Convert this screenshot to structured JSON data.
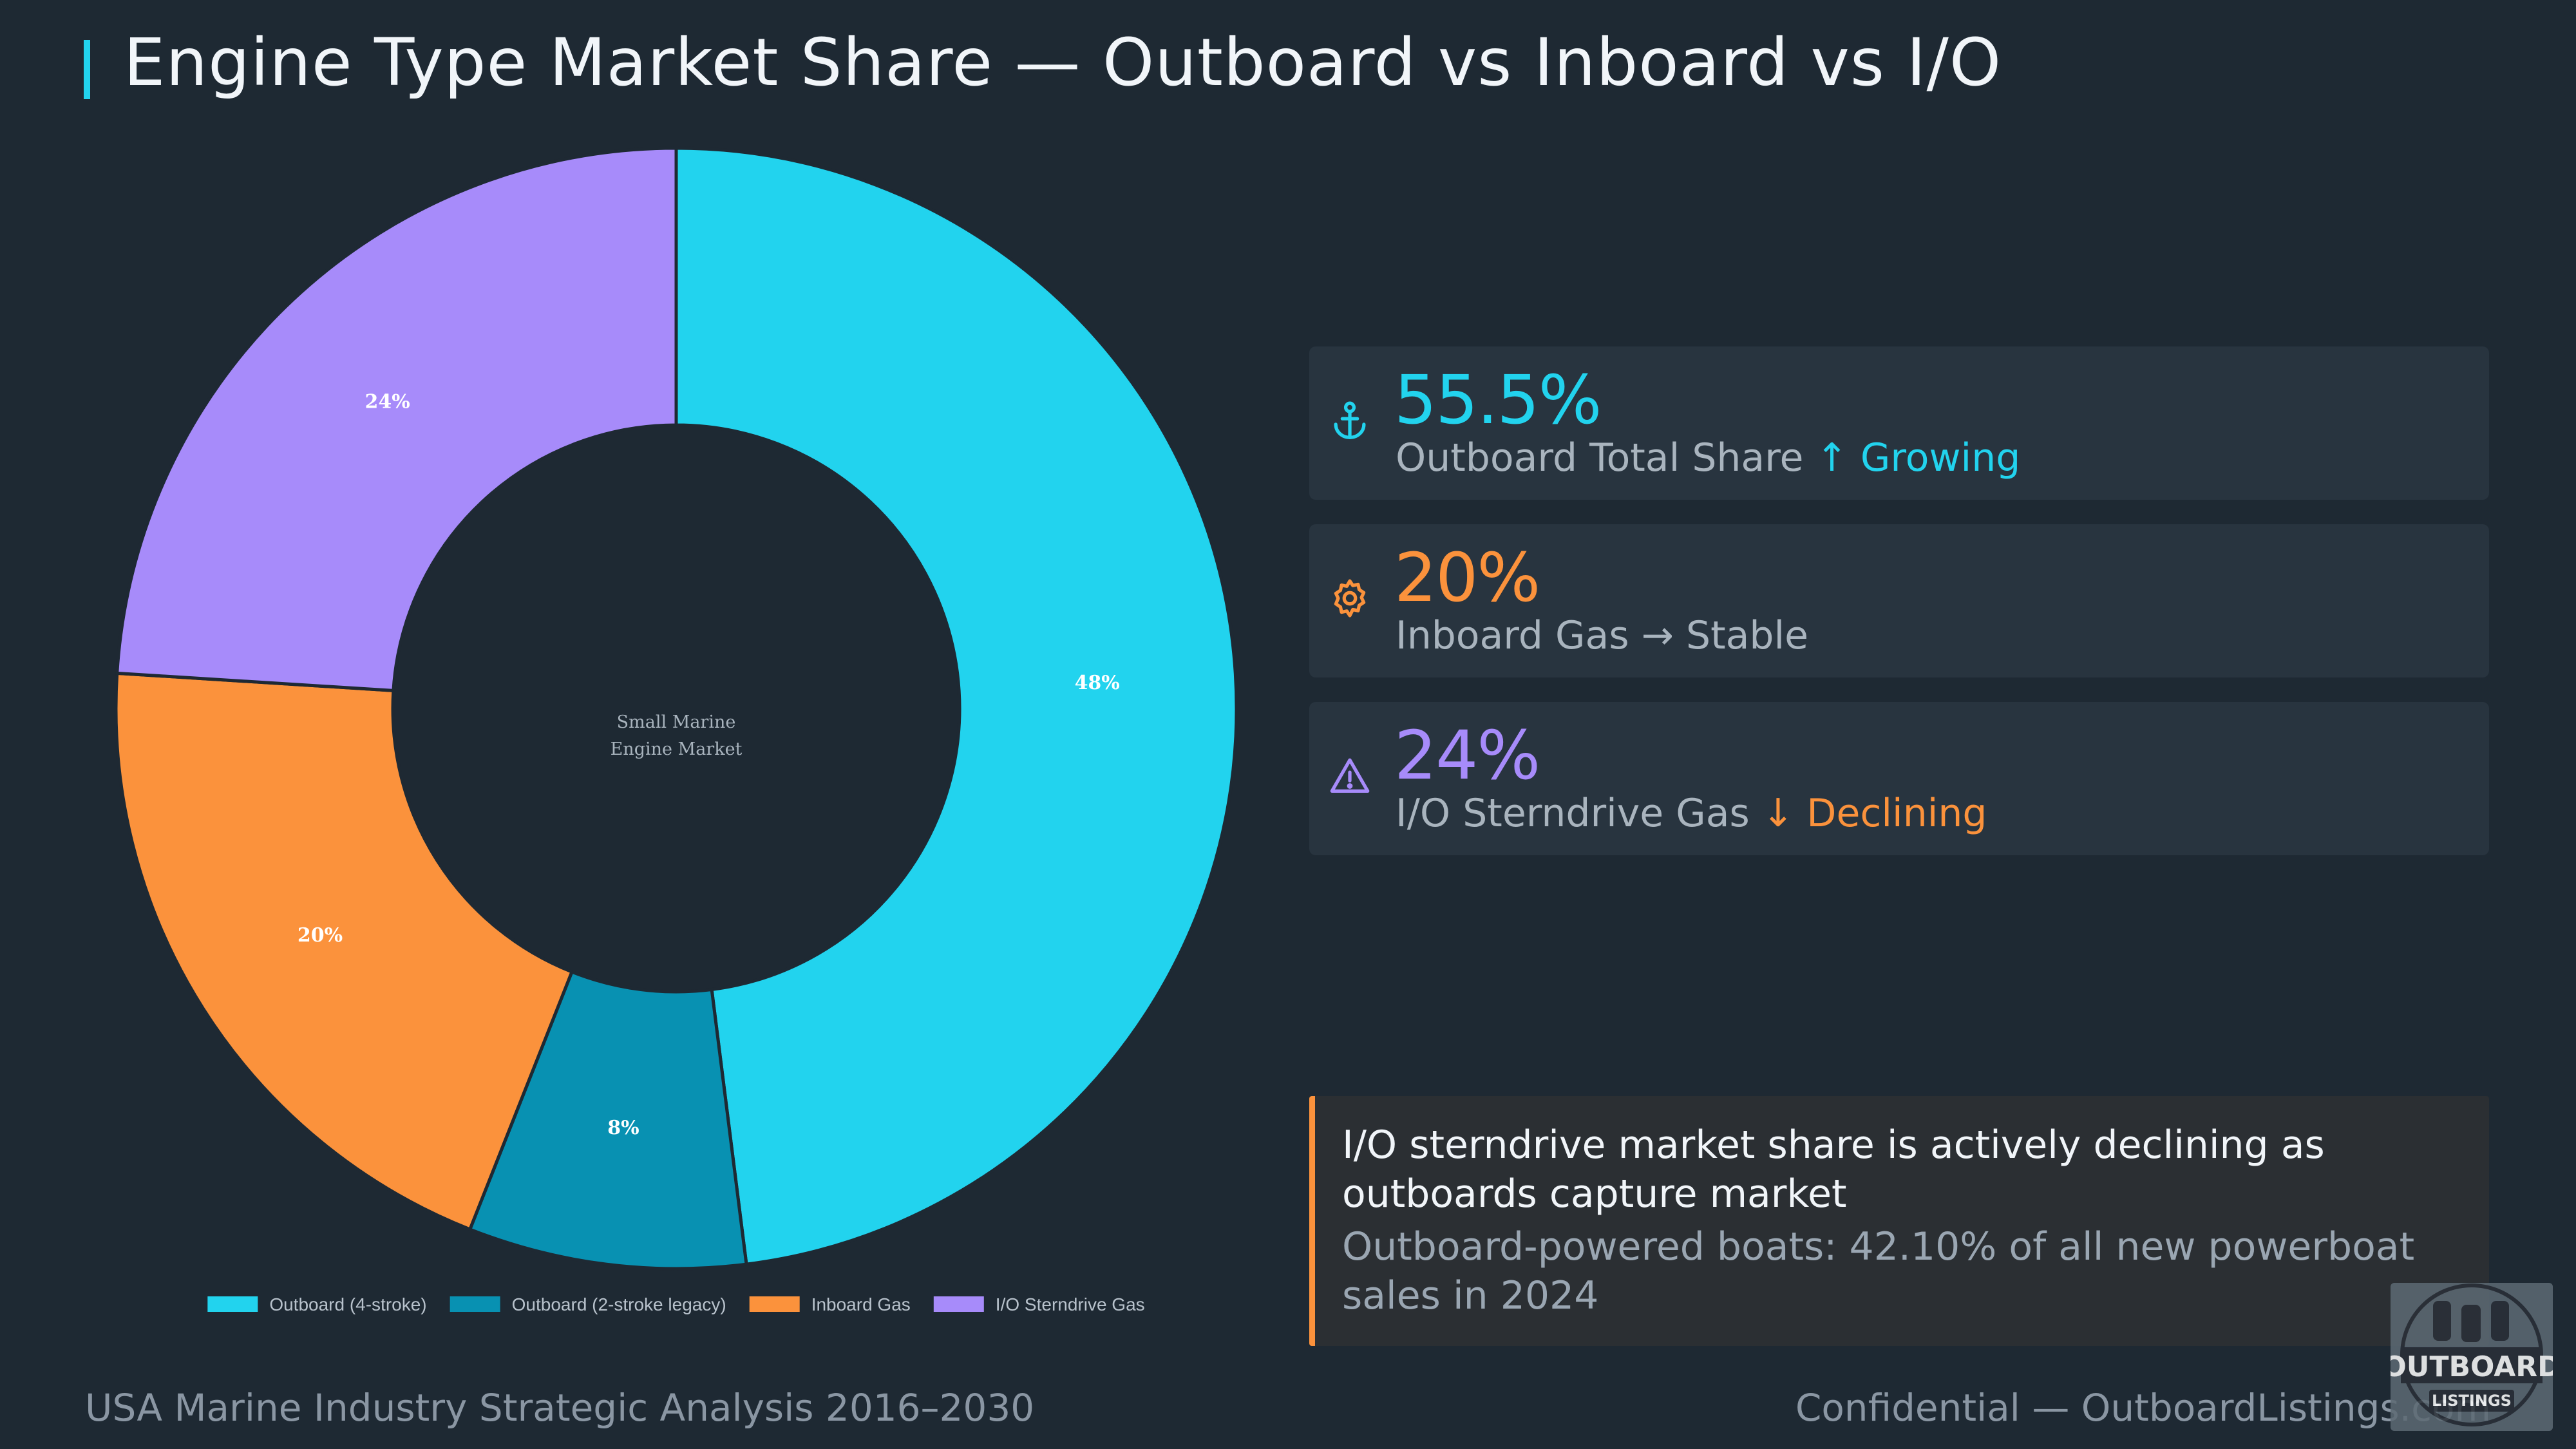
{
  "header": {
    "title": "Engine Type Market Share — Outboard vs Inboard vs I/O"
  },
  "chart_data": {
    "type": "pie",
    "variant": "donut",
    "center_label": [
      "Small Marine",
      "Engine Market"
    ],
    "categories": [
      "Outboard (4-stroke)",
      "Outboard (2-stroke legacy)",
      "Inboard Gas",
      "I/O Sterndrive Gas"
    ],
    "values": [
      48,
      8,
      20,
      24
    ],
    "data_labels": [
      "48%",
      "8%",
      "20%",
      "24%"
    ],
    "colors": [
      "#22d3ee",
      "#0891b2",
      "#fb923c",
      "#a78bfa"
    ],
    "legend": {
      "position": "bottom"
    },
    "slice_border_color": "#1e2933"
  },
  "kpis": [
    {
      "icon": "anchor-icon",
      "value": "55.5%",
      "label": "Outboard Total Share",
      "trend": "↑ Growing",
      "value_color": "#22d3ee",
      "trend_color": "#22d3ee"
    },
    {
      "icon": "gear-icon",
      "value": "20%",
      "label": "Inboard Gas",
      "trend": "→ Stable",
      "value_color": "#fb923c",
      "trend_color": "#a9b4be"
    },
    {
      "icon": "warning-icon",
      "value": "24%",
      "label": "I/O Sterndrive Gas",
      "trend": "↓ Declining",
      "value_color": "#a78bfa",
      "trend_color": "#fb923c"
    }
  ],
  "insight": {
    "main": "I/O sterndrive market share is actively declining as outboards capture market",
    "sub": "Outboard-powered boats: 42.10% of all new powerboat sales in 2024"
  },
  "footer": {
    "left": "USA Marine Industry Strategic Analysis 2016–2030",
    "right": "Confidential — OutboardListings.com"
  },
  "logo": {
    "text": "OUTBOARD LISTINGS"
  }
}
